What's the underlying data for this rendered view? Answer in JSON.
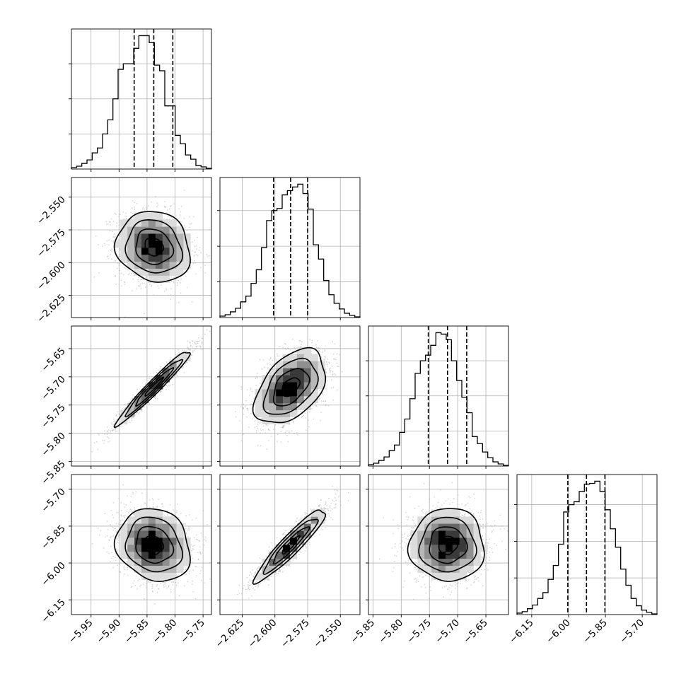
{
  "chart_data": {
    "type": "corner",
    "grid": true,
    "colors": {
      "ink": "#000000",
      "grid": "#b0b0b0",
      "scatter": "#b5b5b5",
      "density": [
        "#ffffff",
        "#dcdcdc",
        "#b8b8b8",
        "#8f8f8f",
        "#666666",
        "#3a3a3a",
        "#000000"
      ]
    },
    "params": [
      {
        "range": [
          -5.985,
          -5.735
        ],
        "mean": -5.838,
        "sd": 0.033,
        "quantiles": [
          -5.873,
          -5.838,
          -5.804
        ],
        "ticks": [
          -5.95,
          -5.9,
          -5.85,
          -5.8,
          -5.75
        ],
        "tick_labels": [
          "−5.95",
          "−5.90",
          "−5.85",
          "−5.80",
          "−5.75"
        ]
      },
      {
        "range": [
          -2.642,
          -2.535
        ],
        "mean": -2.588,
        "sd": 0.0135,
        "quantiles": [
          -2.601,
          -2.588,
          -2.575
        ],
        "ticks": [
          -2.625,
          -2.6,
          -2.575,
          -2.55
        ],
        "tick_labels": [
          "−2.625",
          "−2.600",
          "−2.575",
          "−2.550"
        ]
      },
      {
        "range": [
          -5.858,
          -5.61
        ],
        "mean": -5.718,
        "sd": 0.033,
        "quantiles": [
          -5.752,
          -5.718,
          -5.684
        ],
        "ticks": [
          -5.85,
          -5.8,
          -5.75,
          -5.7,
          -5.65
        ],
        "tick_labels": [
          "−5.85",
          "−5.80",
          "−5.75",
          "−5.70",
          "−5.65"
        ]
      },
      {
        "range": [
          -6.21,
          -5.64
        ],
        "mean": -5.927,
        "sd": 0.074,
        "quantiles": [
          -6.003,
          -5.927,
          -5.852
        ],
        "ticks": [
          -6.15,
          -6.0,
          -5.85,
          -5.7
        ],
        "tick_labels": [
          "−6.15",
          "−6.00",
          "−5.85",
          "−5.70"
        ]
      }
    ],
    "hist_counts": [
      [
        2,
        4,
        8,
        13,
        23,
        30,
        50,
        70,
        100,
        142,
        150,
        150,
        172,
        190,
        190,
        180,
        148,
        140,
        90,
        90,
        48,
        36,
        20,
        14,
        5,
        3,
        1
      ],
      [
        2,
        4,
        8,
        13,
        22,
        30,
        48,
        67,
        98,
        136,
        150,
        153,
        172,
        178,
        183,
        187,
        174,
        152,
        102,
        82,
        52,
        32,
        20,
        12,
        6,
        3,
        1
      ],
      [
        2,
        4,
        8,
        13,
        22,
        30,
        48,
        67,
        96,
        132,
        150,
        158,
        172,
        190,
        188,
        180,
        150,
        122,
        98,
        76,
        42,
        32,
        20,
        12,
        6,
        3,
        1
      ],
      [
        2,
        4,
        8,
        13,
        22,
        30,
        48,
        67,
        96,
        140,
        150,
        154,
        168,
        178,
        179,
        182,
        168,
        143,
        117,
        92,
        62,
        40,
        22,
        12,
        6,
        3,
        1
      ]
    ],
    "pair_correlations": [
      {
        "x": 0,
        "y": 1,
        "rho": -0.12
      },
      {
        "x": 0,
        "y": 2,
        "rho": 0.97
      },
      {
        "x": 1,
        "y": 2,
        "rho": 0.45
      },
      {
        "x": 0,
        "y": 3,
        "rho": -0.15
      },
      {
        "x": 1,
        "y": 3,
        "rho": 0.93
      },
      {
        "x": 2,
        "y": 3,
        "rho": 0.0
      }
    ],
    "contour_levels_sigma": [
      0.5,
      1.0,
      1.5,
      2.0
    ],
    "density_bins": 20,
    "scatter_points_per_panel": 1800
  }
}
